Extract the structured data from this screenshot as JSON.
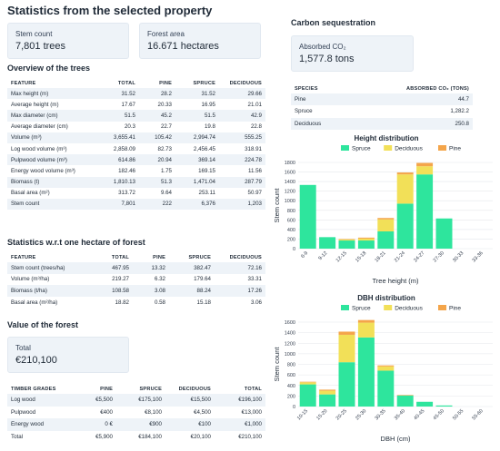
{
  "title": "Statistics from the selected property",
  "stem_card": {
    "label": "Stem count",
    "value": "7,801 trees"
  },
  "area_card": {
    "label": "Forest area",
    "value": "16.671 hectares"
  },
  "carbon": {
    "title": "Carbon sequestration",
    "card_label": "Absorbed CO₂",
    "card_value": "1,577.8 tons",
    "headers": [
      "SPECIES",
      "ABSORBED CO₂ (TONS)"
    ],
    "rows": [
      [
        "Pine",
        "44.7"
      ],
      [
        "Spruce",
        "1,282.2"
      ],
      [
        "Deciduous",
        "250.8"
      ]
    ]
  },
  "overview": {
    "title": "Overview of the trees",
    "headers": [
      "FEATURE",
      "TOTAL",
      "PINE",
      "SPRUCE",
      "DECIDUOUS"
    ],
    "rows": [
      [
        "Max height (m)",
        "31.52",
        "28.2",
        "31.52",
        "29.66"
      ],
      [
        "Average height (m)",
        "17.67",
        "20.33",
        "16.95",
        "21.01"
      ],
      [
        "Max diameter (cm)",
        "51.5",
        "45.2",
        "51.5",
        "42.9"
      ],
      [
        "Average diameter (cm)",
        "20.3",
        "22.7",
        "19.8",
        "22.8"
      ],
      [
        "Volume (m³)",
        "3,655.41",
        "105.42",
        "2,994.74",
        "555.25"
      ],
      [
        "Log wood volume (m³)",
        "2,858.09",
        "82.73",
        "2,456.45",
        "318.91"
      ],
      [
        "Pulpwood volume (m³)",
        "614.86",
        "20.94",
        "369.14",
        "224.78"
      ],
      [
        "Energy wood volume (m³)",
        "182.46",
        "1.75",
        "169.15",
        "11.56"
      ],
      [
        "Biomass (t)",
        "1,810.13",
        "51.3",
        "1,471.04",
        "287.79"
      ],
      [
        "Basal area (m²)",
        "313.72",
        "9.64",
        "253.11",
        "50.97"
      ],
      [
        "Stem count",
        "7,801",
        "222",
        "6,376",
        "1,203"
      ]
    ]
  },
  "per_hectare": {
    "title": "Statistics w.r.t one hectare of forest",
    "headers": [
      "FEATURE",
      "TOTAL",
      "PINE",
      "SPRUCE",
      "DECIDUOUS"
    ],
    "rows": [
      [
        "Stem count (trees/ha)",
        "467.95",
        "13.32",
        "382.47",
        "72.16"
      ],
      [
        "Volume (m³/ha)",
        "219.27",
        "6.32",
        "179.64",
        "33.31"
      ],
      [
        "Biomass (t/ha)",
        "108.58",
        "3.08",
        "88.24",
        "17.26"
      ],
      [
        "Basal area (m²/ha)",
        "18.82",
        "0.58",
        "15.18",
        "3.06"
      ]
    ]
  },
  "value": {
    "title": "Value of the forest",
    "card_label": "Total",
    "card_value": "€210,100",
    "headers": [
      "TIMBER GRADES",
      "PINE",
      "SPRUCE",
      "DECIDUOUS",
      "TOTAL"
    ],
    "rows": [
      [
        "Log wood",
        "€5,500",
        "€175,100",
        "€15,500",
        "€196,100"
      ],
      [
        "Pulpwood",
        "€400",
        "€8,100",
        "€4,500",
        "€13,000"
      ],
      [
        "Energy wood",
        "0 €",
        "€900",
        "€100",
        "€1,000"
      ],
      [
        "Total",
        "€5,900",
        "€184,100",
        "€20,100",
        "€210,100"
      ]
    ]
  },
  "colors": {
    "spruce": "#2ee59d",
    "deciduous": "#f2e058",
    "pine": "#f4a54a"
  },
  "chart_data": [
    {
      "type": "bar",
      "stacked": true,
      "title": "Height distribution",
      "xlabel": "Tree height (m)",
      "ylabel": "Stem count",
      "ylim": [
        0,
        1800
      ],
      "yticks": [
        0,
        200,
        400,
        600,
        800,
        1000,
        1200,
        1400,
        1600,
        1800
      ],
      "legend": [
        "Spruce",
        "Deciduous",
        "Pine"
      ],
      "categories": [
        "6-9",
        "9-12",
        "12-15",
        "15-18",
        "18-21",
        "21-24",
        "24-27",
        "27-30",
        "30-33",
        "33-36"
      ],
      "series": [
        {
          "name": "Spruce",
          "values": [
            1330,
            240,
            170,
            170,
            360,
            940,
            1550,
            630,
            0,
            0
          ]
        },
        {
          "name": "Deciduous",
          "values": [
            0,
            0,
            20,
            40,
            250,
            610,
            170,
            0,
            0,
            0
          ]
        },
        {
          "name": "Pine",
          "values": [
            0,
            0,
            10,
            20,
            30,
            40,
            70,
            0,
            0,
            0
          ]
        }
      ]
    },
    {
      "type": "bar",
      "stacked": true,
      "title": "DBH distribution",
      "xlabel": "DBH (cm)",
      "ylabel": "Stem count",
      "ylim": [
        0,
        1600
      ],
      "yticks": [
        0,
        200,
        400,
        600,
        800,
        1000,
        1200,
        1400,
        1600
      ],
      "legend": [
        "Spruce",
        "Deciduous",
        "Pine"
      ],
      "categories": [
        "10-15",
        "15-20",
        "20-25",
        "25-30",
        "30-35",
        "35-40",
        "40-45",
        "45-50",
        "50-55",
        "55-60"
      ],
      "series": [
        {
          "name": "Spruce",
          "values": [
            420,
            230,
            840,
            1310,
            680,
            210,
            90,
            20,
            0,
            0
          ]
        },
        {
          "name": "Deciduous",
          "values": [
            40,
            70,
            520,
            280,
            80,
            0,
            0,
            0,
            0,
            0
          ]
        },
        {
          "name": "Pine",
          "values": [
            10,
            20,
            60,
            50,
            20,
            10,
            0,
            0,
            0,
            0
          ]
        }
      ]
    }
  ]
}
